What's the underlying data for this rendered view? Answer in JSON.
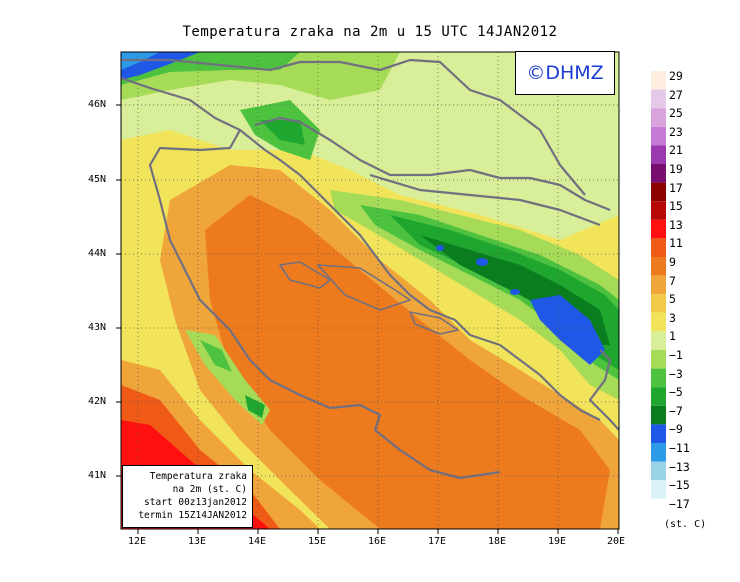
{
  "title": "Temperatura zraka na 2m u 15 UTC 14JAN2012",
  "copyright": "©DHMZ",
  "info_box": {
    "line1": "Temperatura zraka",
    "line2": "na 2m (st. C)",
    "line3": "start 00z13jan2012",
    "line4": "termin 15Z14JAN2012"
  },
  "lat_labels": [
    "46N",
    "45N",
    "44N",
    "43N",
    "42N",
    "41N"
  ],
  "lon_labels": [
    "12E",
    "13E",
    "14E",
    "15E",
    "16E",
    "17E",
    "18E",
    "19E",
    "20E"
  ],
  "legend": {
    "units": "(st. C)",
    "labels": [
      "29",
      "27",
      "25",
      "23",
      "21",
      "19",
      "17",
      "15",
      "13",
      "11",
      "9",
      "7",
      "5",
      "3",
      "1",
      "−1",
      "−3",
      "−5",
      "−7",
      "−9",
      "−11",
      "−13",
      "−15",
      "−17"
    ],
    "colors": [
      "#fdeee0",
      "#e5c9e9",
      "#d9a4de",
      "#c679d7",
      "#9a3aae",
      "#760d6f",
      "#8b0000",
      "#b70707",
      "#ff1010",
      "#f05a17",
      "#ee7a1e",
      "#f0a53a",
      "#f3ca48",
      "#f2e45a",
      "#d9ee98",
      "#a6db58",
      "#4cc23f",
      "#1fa62f",
      "#0a7d1e",
      "#1f57e6",
      "#2d9ae7",
      "#9ad2e8",
      "#d9f3f6",
      "#ffffff"
    ]
  }
}
